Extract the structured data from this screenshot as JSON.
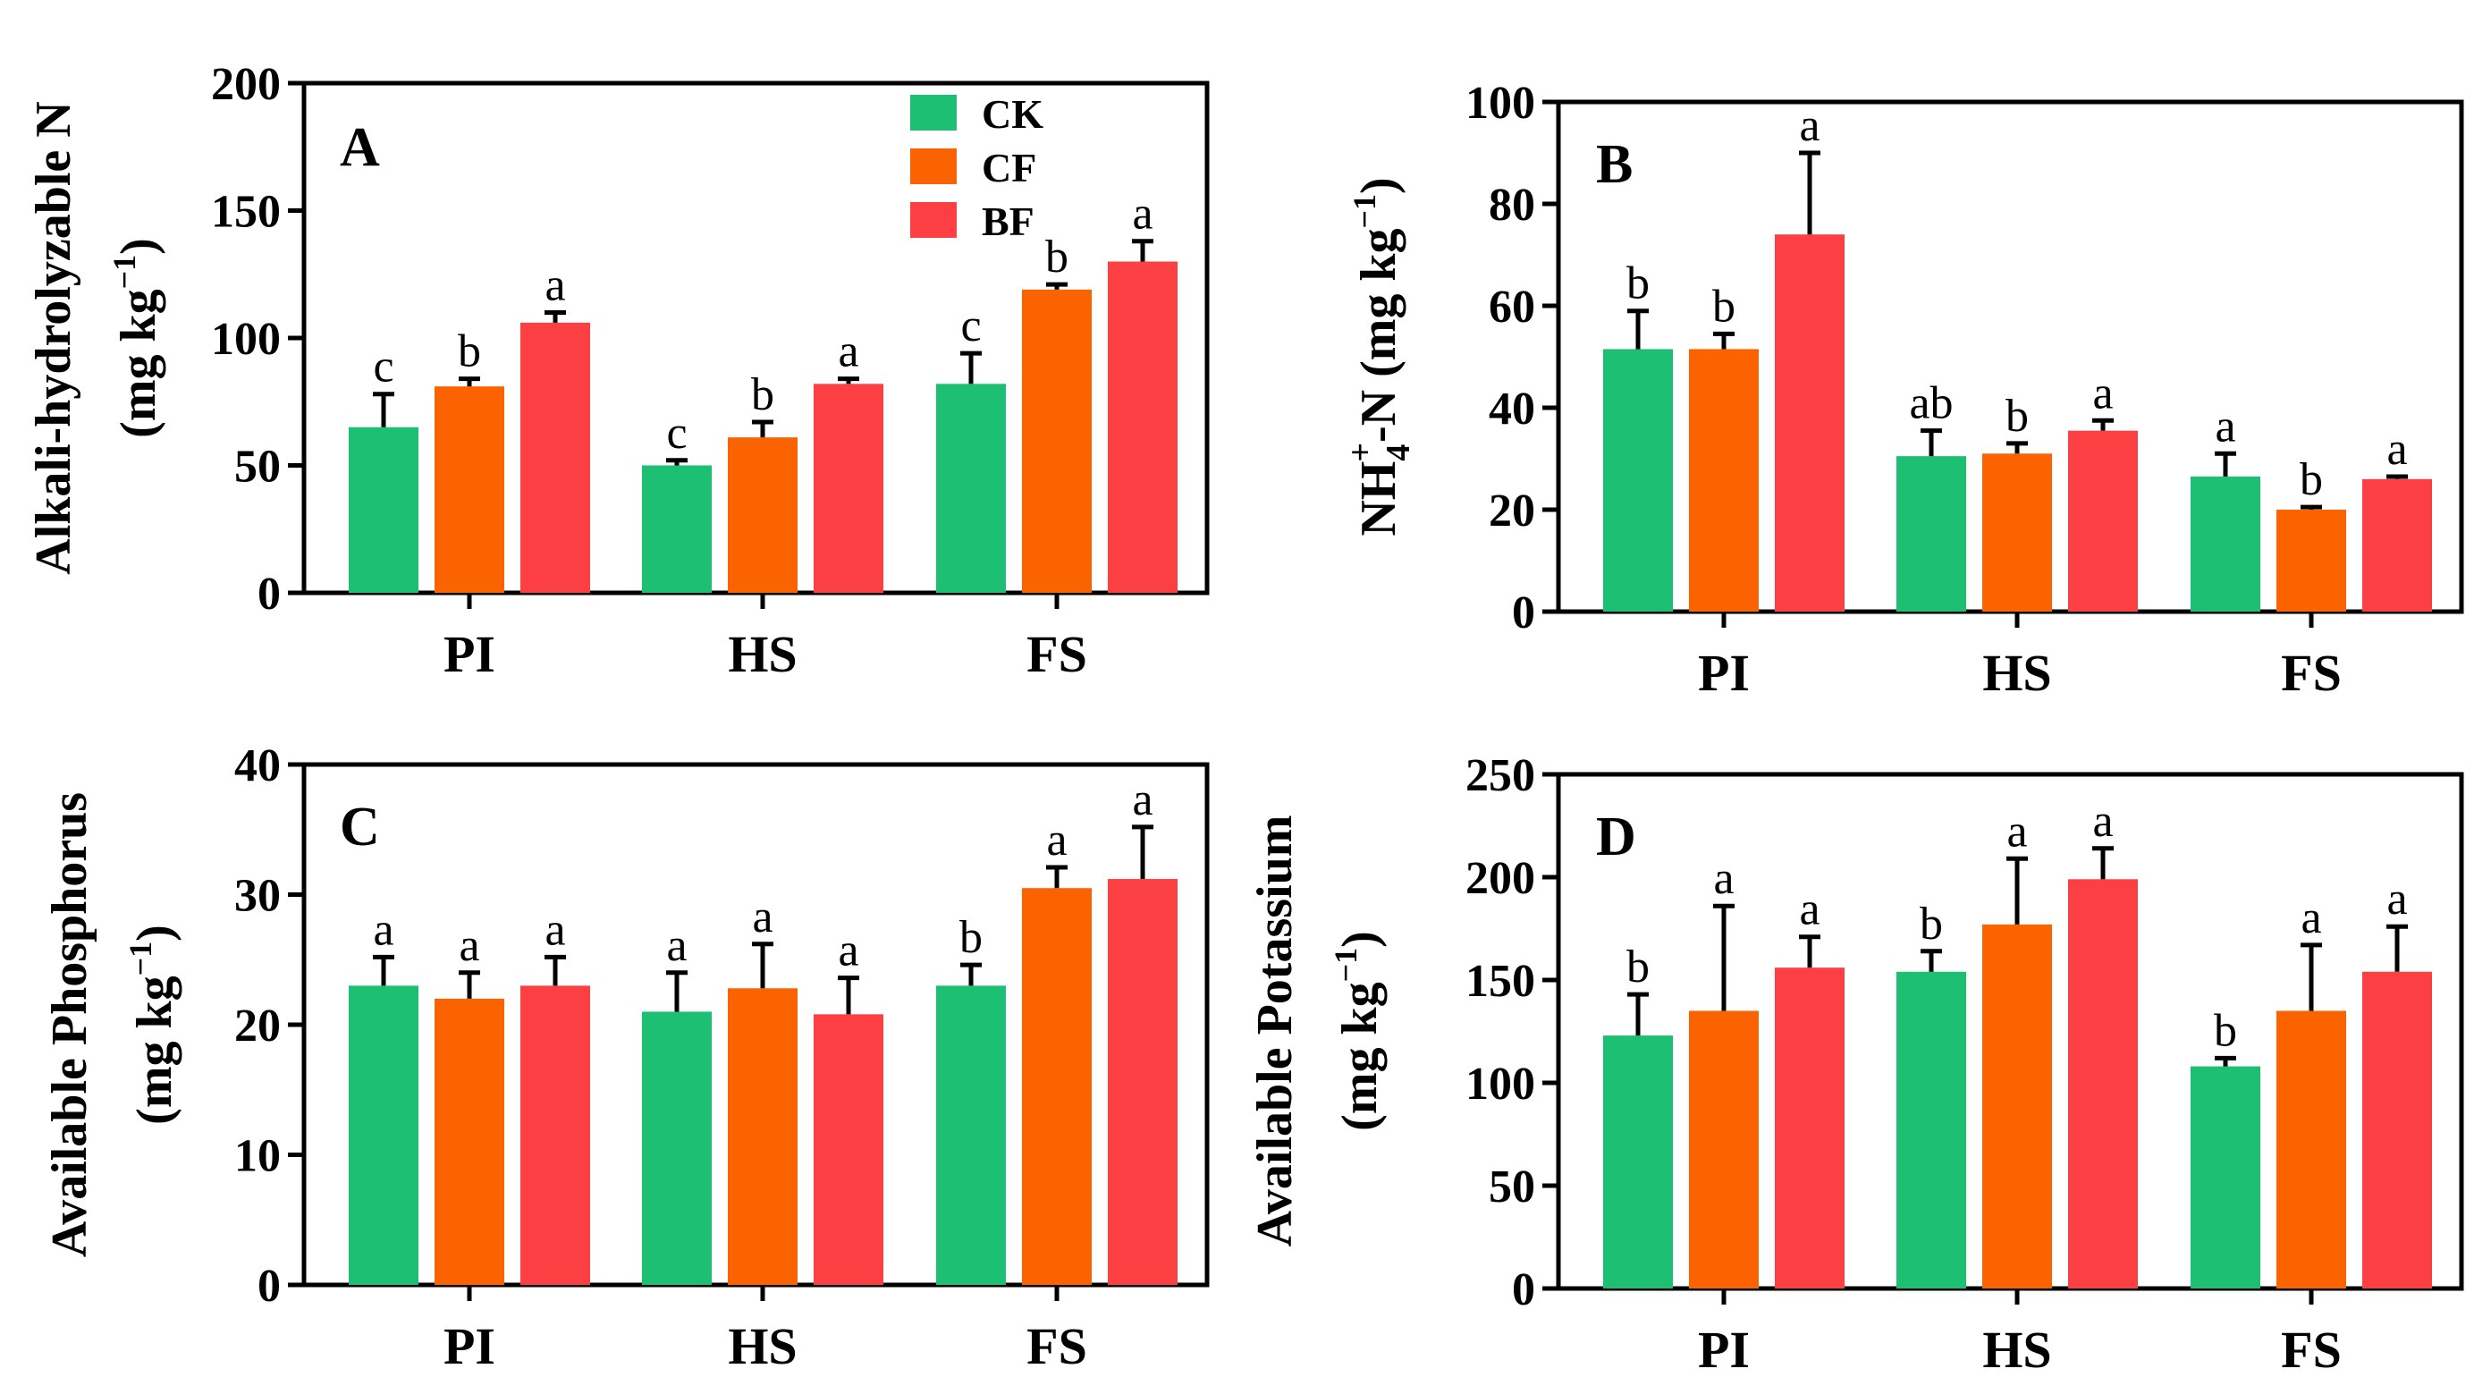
{
  "colors": {
    "CK": "#1dbf73",
    "CF": "#fb6200",
    "BF": "#fc3f43",
    "axis": "#000000"
  },
  "legend": [
    "CK",
    "CF",
    "BF"
  ],
  "chart_data": [
    {
      "type": "bar",
      "panel": "A",
      "categories": [
        "PI",
        "HS",
        "FS"
      ],
      "series": [
        {
          "name": "CK",
          "values": [
            65,
            50,
            82
          ],
          "errors": [
            13,
            2,
            12
          ],
          "letters": [
            "c",
            "c",
            "c"
          ]
        },
        {
          "name": "CF",
          "values": [
            81,
            61,
            119
          ],
          "errors": [
            3,
            6,
            2
          ],
          "letters": [
            "b",
            "b",
            "b"
          ]
        },
        {
          "name": "BF",
          "values": [
            106,
            82,
            130
          ],
          "errors": [
            4,
            2,
            8
          ],
          "letters": [
            "a",
            "a",
            "a"
          ]
        }
      ],
      "ylim": [
        0,
        200
      ],
      "yticks": [
        0,
        50,
        100,
        150,
        200
      ],
      "ylabel_line1": "Alkali-hydrolyzable N",
      "ylabel_line2_prefix": "(mg kg",
      "ylabel_line2_sup": "−1",
      "ylabel_line2_suffix": ")"
    },
    {
      "type": "bar",
      "panel": "B",
      "categories": [
        "PI",
        "HS",
        "FS"
      ],
      "series": [
        {
          "name": "CK",
          "values": [
            51.5,
            30.5,
            26.5
          ],
          "errors": [
            7.5,
            5,
            4.5
          ],
          "letters": [
            "b",
            "ab",
            "a"
          ]
        },
        {
          "name": "CF",
          "values": [
            51.5,
            31,
            20
          ],
          "errors": [
            3,
            2,
            0.5
          ],
          "letters": [
            "b",
            "b",
            "b"
          ]
        },
        {
          "name": "BF",
          "values": [
            74,
            35.5,
            26
          ],
          "errors": [
            16,
            2,
            0.5
          ],
          "letters": [
            "a",
            "a",
            "a"
          ]
        }
      ],
      "ylim": [
        0,
        100
      ],
      "yticks": [
        0,
        20,
        40,
        60,
        80,
        100
      ],
      "ylabel_main": "NH",
      "ylabel_sub": "4",
      "ylabel_sup": "+",
      "ylabel_rest": "-N (mg kg",
      "ylabel_sup2": "−1",
      "ylabel_end": ")"
    },
    {
      "type": "bar",
      "panel": "C",
      "categories": [
        "PI",
        "HS",
        "FS"
      ],
      "series": [
        {
          "name": "CK",
          "values": [
            23,
            21,
            23
          ],
          "errors": [
            2.2,
            3,
            1.6
          ],
          "letters": [
            "a",
            "a",
            "b"
          ]
        },
        {
          "name": "CF",
          "values": [
            22,
            22.8,
            30.5
          ],
          "errors": [
            2,
            3.4,
            1.6
          ],
          "letters": [
            "a",
            "a",
            "a"
          ]
        },
        {
          "name": "BF",
          "values": [
            23,
            20.8,
            31.2
          ],
          "errors": [
            2.2,
            2.8,
            4
          ],
          "letters": [
            "a",
            "a",
            "a"
          ]
        }
      ],
      "ylim": [
        0,
        40
      ],
      "yticks": [
        0,
        10,
        20,
        30,
        40
      ],
      "ylabel_line1": "Available Phosphorus",
      "ylabel_line2_prefix": "(mg kg",
      "ylabel_line2_sup": "−1",
      "ylabel_line2_suffix": ")"
    },
    {
      "type": "bar",
      "panel": "D",
      "categories": [
        "PI",
        "HS",
        "FS"
      ],
      "series": [
        {
          "name": "CK",
          "values": [
            123,
            154,
            108
          ],
          "errors": [
            20,
            10,
            4
          ],
          "letters": [
            "b",
            "b",
            "b"
          ]
        },
        {
          "name": "CF",
          "values": [
            135,
            177,
            135
          ],
          "errors": [
            51,
            32,
            32
          ],
          "letters": [
            "a",
            "a",
            "a"
          ]
        },
        {
          "name": "BF",
          "values": [
            156,
            199,
            154
          ],
          "errors": [
            15,
            15,
            22
          ],
          "letters": [
            "a",
            "a",
            "a"
          ]
        }
      ],
      "ylim": [
        0,
        250
      ],
      "yticks": [
        0,
        50,
        100,
        150,
        200,
        250
      ],
      "ylabel_line1": "Available Potassium",
      "ylabel_line2_prefix": "(mg kg",
      "ylabel_line2_sup": "−1",
      "ylabel_line2_suffix": ")"
    }
  ]
}
